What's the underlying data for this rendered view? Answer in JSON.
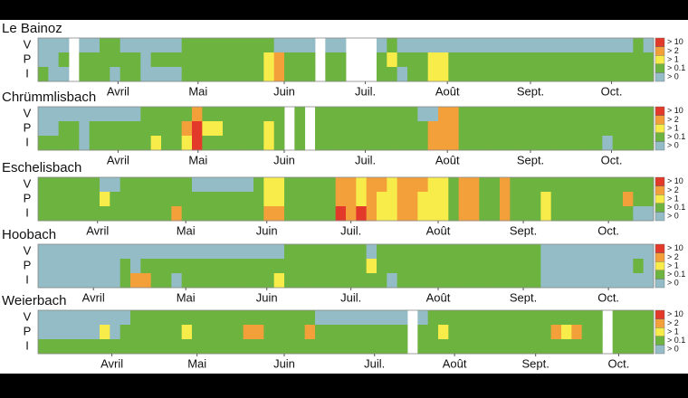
{
  "chart_data": [
    {
      "type": "heatmap",
      "title": "Le Bainoz",
      "rows": [
        "V",
        "P",
        "I"
      ],
      "legend": [
        {
          "label": "> 0",
          "color": "#93bcc6"
        },
        {
          "label": "> 0.1",
          "color": "#6db33f"
        },
        {
          "label": "> 1",
          "color": "#f7ec4a"
        },
        {
          "label": "> 2",
          "color": "#f4a03a"
        },
        {
          "label": "> 10",
          "color": "#e2392b"
        }
      ],
      "xticks": [
        {
          "value": 7.8,
          "label": "Avril"
        },
        {
          "value": 15.6,
          "label": "Mai"
        },
        {
          "value": 24,
          "label": "Juin"
        },
        {
          "value": 31.9,
          "label": "Juil."
        },
        {
          "value": 39.9,
          "label": "Août"
        },
        {
          "value": 48,
          "label": "Sept."
        },
        {
          "value": 55.9,
          "label": "Oct."
        }
      ],
      "cells": [
        [
          0,
          0,
          0,
          null,
          0,
          0,
          1,
          1,
          0,
          0,
          0,
          0,
          0,
          0,
          1,
          1,
          1,
          1,
          1,
          1,
          1,
          1,
          1,
          0,
          0,
          0,
          0,
          null,
          0,
          0,
          null,
          null,
          null,
          0,
          1,
          0,
          0,
          0,
          0,
          0,
          0,
          0,
          0,
          0,
          0,
          0,
          0,
          0,
          0,
          0,
          0,
          0,
          0,
          0,
          0,
          0,
          0,
          0,
          1,
          0
        ],
        [
          0,
          0,
          1,
          null,
          1,
          1,
          1,
          1,
          1,
          1,
          0,
          1,
          1,
          1,
          1,
          1,
          1,
          1,
          1,
          1,
          1,
          1,
          2,
          3,
          1,
          1,
          1,
          null,
          1,
          1,
          null,
          null,
          null,
          1,
          2,
          1,
          1,
          1,
          2,
          2,
          1,
          1,
          1,
          1,
          1,
          1,
          1,
          1,
          1,
          1,
          1,
          1,
          1,
          1,
          1,
          1,
          1,
          1,
          1,
          1
        ],
        [
          1,
          0,
          0,
          null,
          1,
          1,
          1,
          0,
          1,
          1,
          0,
          0,
          0,
          0,
          1,
          1,
          1,
          1,
          1,
          1,
          1,
          1,
          2,
          3,
          1,
          1,
          1,
          null,
          1,
          1,
          null,
          null,
          null,
          1,
          1,
          0,
          1,
          1,
          2,
          2,
          1,
          1,
          1,
          1,
          1,
          1,
          1,
          1,
          1,
          1,
          1,
          1,
          1,
          1,
          1,
          1,
          1,
          1,
          1,
          1
        ]
      ]
    },
    {
      "type": "heatmap",
      "title": "Chrümmlisbach",
      "rows": [
        "V",
        "P",
        "I"
      ],
      "legend": [
        {
          "label": "> 0",
          "color": "#93bcc6"
        },
        {
          "label": "> 0.1",
          "color": "#6db33f"
        },
        {
          "label": "> 1",
          "color": "#f7ec4a"
        },
        {
          "label": "> 2",
          "color": "#f4a03a"
        },
        {
          "label": "> 10",
          "color": "#e2392b"
        }
      ],
      "xticks": [
        {
          "value": 7.8,
          "label": "Avril"
        },
        {
          "value": 15.6,
          "label": "Mai"
        },
        {
          "value": 24,
          "label": "Juin"
        },
        {
          "value": 31.9,
          "label": "Juil."
        },
        {
          "value": 39.9,
          "label": "Août"
        },
        {
          "value": 48,
          "label": "Sept."
        },
        {
          "value": 55.9,
          "label": "Oct."
        }
      ],
      "cells": [
        [
          0,
          0,
          0,
          0,
          0,
          0,
          0,
          0,
          0,
          0,
          1,
          1,
          1,
          1,
          1,
          3,
          1,
          1,
          1,
          1,
          1,
          1,
          1,
          1,
          null,
          1,
          null,
          1,
          1,
          1,
          1,
          1,
          1,
          1,
          1,
          1,
          1,
          0,
          0,
          3,
          3,
          1,
          1,
          1,
          1,
          1,
          1,
          1,
          1,
          1,
          1,
          1,
          1,
          1,
          1,
          1,
          1,
          1,
          1,
          1
        ],
        [
          0,
          0,
          1,
          1,
          0,
          1,
          1,
          1,
          1,
          1,
          1,
          1,
          1,
          1,
          3,
          4,
          2,
          2,
          1,
          1,
          1,
          1,
          2,
          1,
          null,
          1,
          null,
          1,
          1,
          1,
          1,
          1,
          1,
          1,
          1,
          1,
          1,
          1,
          3,
          3,
          3,
          1,
          1,
          1,
          1,
          1,
          1,
          1,
          1,
          1,
          1,
          1,
          1,
          1,
          1,
          1,
          1,
          1,
          1,
          1
        ],
        [
          1,
          1,
          1,
          1,
          0,
          1,
          1,
          1,
          1,
          1,
          1,
          2,
          1,
          1,
          2,
          4,
          1,
          1,
          1,
          1,
          1,
          1,
          2,
          1,
          null,
          1,
          null,
          1,
          1,
          1,
          1,
          1,
          1,
          1,
          1,
          1,
          1,
          1,
          3,
          3,
          3,
          1,
          1,
          1,
          1,
          1,
          1,
          1,
          1,
          1,
          1,
          1,
          1,
          1,
          1,
          0,
          1,
          1,
          1,
          1
        ]
      ]
    },
    {
      "type": "heatmap",
      "title": "Eschelisbach",
      "rows": [
        "V",
        "P",
        "I"
      ],
      "legend": [
        {
          "label": "> 0",
          "color": "#93bcc6"
        },
        {
          "label": "> 0.1",
          "color": "#6db33f"
        },
        {
          "label": "> 1",
          "color": "#f7ec4a"
        },
        {
          "label": "> 2",
          "color": "#f4a03a"
        },
        {
          "label": "> 10",
          "color": "#e2392b"
        }
      ],
      "xticks": [
        {
          "value": 5.8,
          "label": "Avril"
        },
        {
          "value": 14.4,
          "label": "Mai"
        },
        {
          "value": 22.3,
          "label": "Juin"
        },
        {
          "value": 30.5,
          "label": "Juil."
        },
        {
          "value": 39,
          "label": "Août"
        },
        {
          "value": 47.3,
          "label": "Sept."
        },
        {
          "value": 55.6,
          "label": "Oct."
        }
      ],
      "cells": [
        [
          1,
          1,
          1,
          1,
          1,
          1,
          0,
          0,
          1,
          1,
          1,
          1,
          1,
          1,
          1,
          0,
          0,
          0,
          0,
          0,
          0,
          1,
          2,
          2,
          1,
          1,
          1,
          1,
          1,
          3,
          3,
          2,
          3,
          3,
          2,
          3,
          3,
          3,
          2,
          2,
          1,
          3,
          3,
          1,
          1,
          3,
          1,
          1,
          1,
          1,
          1,
          1,
          1,
          1,
          1,
          1,
          1,
          1,
          1,
          1
        ],
        [
          1,
          1,
          1,
          1,
          1,
          1,
          2,
          1,
          1,
          1,
          1,
          1,
          1,
          1,
          1,
          1,
          1,
          1,
          1,
          1,
          1,
          1,
          2,
          2,
          1,
          1,
          1,
          1,
          1,
          3,
          3,
          2,
          3,
          2,
          2,
          3,
          3,
          2,
          2,
          2,
          1,
          3,
          3,
          1,
          1,
          3,
          1,
          1,
          1,
          2,
          1,
          1,
          1,
          1,
          1,
          1,
          1,
          3,
          1,
          1
        ],
        [
          1,
          1,
          1,
          1,
          1,
          1,
          1,
          1,
          1,
          1,
          1,
          1,
          1,
          3,
          1,
          1,
          1,
          1,
          1,
          1,
          1,
          1,
          3,
          3,
          1,
          1,
          1,
          1,
          1,
          4,
          3,
          4,
          3,
          2,
          2,
          3,
          3,
          2,
          2,
          2,
          1,
          3,
          3,
          1,
          1,
          3,
          1,
          1,
          1,
          2,
          1,
          1,
          1,
          1,
          1,
          1,
          1,
          1,
          0,
          0
        ]
      ]
    },
    {
      "type": "heatmap",
      "title": "Hoobach",
      "rows": [
        "V",
        "P",
        "I"
      ],
      "legend": [
        {
          "label": "> 0",
          "color": "#93bcc6"
        },
        {
          "label": "> 0.1",
          "color": "#6db33f"
        },
        {
          "label": "> 1",
          "color": "#f7ec4a"
        },
        {
          "label": "> 2",
          "color": "#f4a03a"
        },
        {
          "label": "> 10",
          "color": "#e2392b"
        }
      ],
      "xticks": [
        {
          "value": 5.4,
          "label": "Avril"
        },
        {
          "value": 14.4,
          "label": "Mai"
        },
        {
          "value": 22.3,
          "label": "Juin"
        },
        {
          "value": 30.5,
          "label": "Juil."
        },
        {
          "value": 39,
          "label": "Août"
        },
        {
          "value": 47.3,
          "label": "Sept."
        },
        {
          "value": 55.6,
          "label": "Oct."
        }
      ],
      "cells": [
        [
          0,
          0,
          0,
          0,
          0,
          0,
          0,
          0,
          0,
          0,
          0,
          0,
          0,
          0,
          0,
          0,
          0,
          0,
          0,
          0,
          0,
          0,
          0,
          0,
          1,
          1,
          1,
          1,
          1,
          1,
          1,
          1,
          0,
          1,
          1,
          1,
          1,
          1,
          1,
          1,
          1,
          1,
          1,
          1,
          1,
          1,
          1,
          1,
          1,
          0,
          0,
          0,
          0,
          0,
          0,
          0,
          0,
          0,
          0,
          0
        ],
        [
          0,
          0,
          0,
          0,
          0,
          0,
          0,
          0,
          1,
          0,
          1,
          1,
          1,
          1,
          1,
          1,
          1,
          1,
          1,
          1,
          1,
          1,
          1,
          1,
          1,
          1,
          1,
          1,
          1,
          1,
          1,
          1,
          2,
          1,
          1,
          1,
          1,
          1,
          1,
          1,
          1,
          1,
          1,
          1,
          1,
          1,
          1,
          1,
          1,
          0,
          0,
          0,
          0,
          0,
          0,
          0,
          0,
          0,
          1,
          0
        ],
        [
          0,
          0,
          0,
          0,
          0,
          0,
          0,
          0,
          1,
          3,
          3,
          1,
          1,
          0,
          1,
          1,
          1,
          1,
          1,
          1,
          1,
          1,
          1,
          2,
          1,
          1,
          1,
          1,
          1,
          1,
          1,
          1,
          1,
          1,
          0,
          1,
          1,
          1,
          1,
          1,
          1,
          1,
          1,
          1,
          1,
          1,
          1,
          1,
          1,
          0,
          0,
          0,
          0,
          0,
          0,
          0,
          0,
          0,
          0,
          0
        ]
      ]
    },
    {
      "type": "heatmap",
      "title": "Weierbach",
      "rows": [
        "V",
        "P",
        "I"
      ],
      "legend": [
        {
          "label": "> 0",
          "color": "#93bcc6"
        },
        {
          "label": "> 0.1",
          "color": "#6db33f"
        },
        {
          "label": "> 1",
          "color": "#f7ec4a"
        },
        {
          "label": "> 2",
          "color": "#f4a03a"
        },
        {
          "label": "> 10",
          "color": "#e2392b"
        }
      ],
      "xticks": [
        {
          "value": 7.2,
          "label": "Avril"
        },
        {
          "value": 15.5,
          "label": "Mai"
        },
        {
          "value": 24,
          "label": "Juin"
        },
        {
          "value": 32.8,
          "label": "Juil."
        },
        {
          "value": 40.6,
          "label": "Août"
        },
        {
          "value": 48.5,
          "label": "Sept."
        },
        {
          "value": 56.6,
          "label": "Oct."
        }
      ],
      "cells": [
        [
          0,
          0,
          0,
          0,
          0,
          0,
          0,
          0,
          0,
          1,
          1,
          1,
          1,
          1,
          1,
          1,
          1,
          1,
          1,
          1,
          1,
          1,
          1,
          1,
          1,
          1,
          1,
          0,
          0,
          0,
          0,
          0,
          0,
          0,
          0,
          0,
          null,
          0,
          1,
          1,
          1,
          1,
          1,
          1,
          1,
          1,
          1,
          1,
          1,
          1,
          1,
          1,
          1,
          1,
          1,
          null,
          1,
          1,
          1,
          1
        ],
        [
          0,
          0,
          0,
          0,
          0,
          0,
          2,
          0,
          1,
          1,
          1,
          1,
          1,
          1,
          2,
          1,
          1,
          1,
          1,
          1,
          3,
          3,
          1,
          1,
          1,
          1,
          3,
          1,
          1,
          1,
          1,
          1,
          1,
          1,
          1,
          1,
          null,
          1,
          1,
          2,
          1,
          1,
          1,
          1,
          1,
          1,
          1,
          1,
          1,
          1,
          3,
          2,
          3,
          1,
          1,
          null,
          1,
          1,
          1,
          1
        ],
        [
          1,
          1,
          1,
          1,
          1,
          1,
          1,
          1,
          1,
          1,
          1,
          1,
          1,
          1,
          1,
          1,
          1,
          1,
          1,
          1,
          1,
          1,
          1,
          1,
          1,
          1,
          1,
          1,
          1,
          1,
          1,
          1,
          1,
          1,
          1,
          1,
          null,
          1,
          1,
          1,
          1,
          1,
          1,
          1,
          1,
          1,
          1,
          1,
          1,
          1,
          1,
          1,
          1,
          1,
          1,
          null,
          1,
          1,
          1,
          1
        ]
      ]
    }
  ]
}
